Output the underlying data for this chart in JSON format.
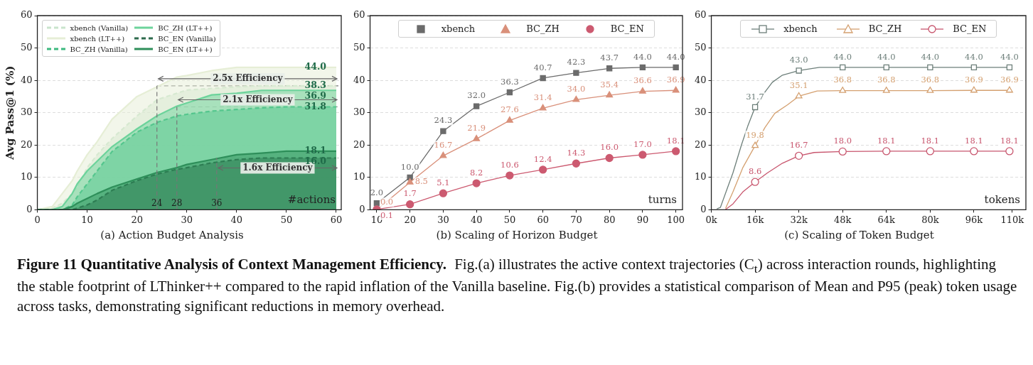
{
  "chart_data": [
    {
      "type": "area",
      "title": "(a) Action Budget Analysis",
      "xlabel": "#actions",
      "ylabel": "Avg Pass@1 (%)",
      "xlim": [
        0,
        61
      ],
      "xticks": [
        0,
        10,
        20,
        30,
        40,
        50,
        60
      ],
      "ylim": [
        0,
        60
      ],
      "yticks": [
        0,
        10,
        20,
        30,
        40,
        50,
        60
      ],
      "grid": "y",
      "legend": "top left",
      "x": [
        0,
        3,
        5,
        7,
        8,
        10,
        12,
        15,
        20,
        24,
        28,
        30,
        35,
        40,
        45,
        50,
        55,
        60
      ],
      "series": [
        {
          "name": "xbench (Vanilla)",
          "color": "#c9e4cc",
          "line_style": "dashed",
          "values": [
            0,
            0.5,
            2,
            5,
            7,
            13,
            17,
            22,
            29,
            34,
            36,
            37,
            37.5,
            38,
            38.3,
            38.3,
            38.3,
            38.3
          ],
          "value_labels": [
            null,
            null,
            null,
            null,
            null,
            null,
            null,
            null,
            null,
            null,
            null,
            null,
            null,
            null,
            null,
            null,
            null,
            "38.3"
          ]
        },
        {
          "name": "xbench (LT++)",
          "color": "#e6eed6",
          "line_style": "solid",
          "values": [
            0,
            1,
            5,
            9,
            12,
            17,
            21,
            28,
            35,
            38,
            41,
            41.5,
            43,
            44,
            44,
            44,
            44,
            44
          ],
          "value_labels": [
            null,
            null,
            null,
            null,
            null,
            null,
            null,
            null,
            null,
            null,
            null,
            null,
            null,
            null,
            null,
            null,
            null,
            "44.0"
          ]
        },
        {
          "name": "BC_ZH (Vanilla)",
          "color": "#3cb97f",
          "line_style": "dashed",
          "values": [
            0,
            0,
            0,
            1.5,
            4,
            8,
            12,
            18,
            24,
            27,
            29,
            29.5,
            30.5,
            31,
            31.5,
            31.8,
            31.8,
            31.8
          ],
          "value_labels": [
            null,
            null,
            null,
            null,
            null,
            null,
            null,
            null,
            null,
            null,
            null,
            null,
            null,
            null,
            null,
            null,
            null,
            "31.8"
          ]
        },
        {
          "name": "BC_ZH (LT++)",
          "color": "#6cd39b",
          "line_style": "solid",
          "values": [
            0,
            0,
            1,
            5,
            8,
            12,
            15,
            19.5,
            25,
            29,
            32,
            33,
            35.5,
            36,
            36.9,
            36.9,
            36.9,
            36.9
          ],
          "value_labels": [
            null,
            null,
            null,
            null,
            null,
            null,
            null,
            null,
            null,
            null,
            null,
            null,
            null,
            null,
            null,
            null,
            null,
            "36.9"
          ]
        },
        {
          "name": "BC_EN (Vanilla)",
          "color": "#2d6a4c",
          "line_style": "dashed",
          "values": [
            0,
            0,
            0,
            0,
            0.5,
            1.5,
            3,
            6,
            9,
            11,
            12.5,
            13,
            14.5,
            15.5,
            16,
            16,
            16,
            16
          ],
          "value_labels": [
            null,
            null,
            null,
            null,
            null,
            null,
            null,
            null,
            null,
            null,
            null,
            null,
            null,
            null,
            null,
            null,
            null,
            "16.0"
          ]
        },
        {
          "name": "BC_EN (LT++)",
          "color": "#2e8f5a",
          "line_style": "solid",
          "values": [
            0,
            0,
            0,
            1,
            2,
            3.5,
            5,
            7,
            9.5,
            11.5,
            13,
            14,
            15.5,
            17,
            17.5,
            18.1,
            18.1,
            18.1
          ],
          "value_labels": [
            null,
            null,
            null,
            null,
            null,
            null,
            null,
            null,
            null,
            null,
            null,
            null,
            null,
            null,
            null,
            null,
            null,
            "18.1"
          ]
        }
      ],
      "ref_lines": [
        {
          "axis": "x",
          "value": 24,
          "label": "24",
          "color": "#777777",
          "line_style": "dashed"
        },
        {
          "axis": "x",
          "value": 28,
          "label": "28",
          "color": "#777777",
          "line_style": "dashed"
        },
        {
          "axis": "x",
          "value": 36,
          "label": "36",
          "color": "#777777",
          "line_style": "dashed"
        },
        {
          "axis": "y",
          "value": 38.3,
          "color": "#777777",
          "line_style": "dashed"
        },
        {
          "axis": "y",
          "value": 31.8,
          "color": "#777777",
          "line_style": "dashed"
        },
        {
          "axis": "y",
          "value": 16,
          "color": "#777777",
          "line_style": "dashed"
        }
      ],
      "annotations": [
        "2.5x Efficiency",
        "2.1x Efficiency",
        "1.6x Efficiency"
      ]
    },
    {
      "type": "line",
      "title": "(b) Scaling of Horizon Budget",
      "xlabel": "turns",
      "xlim": [
        8,
        102
      ],
      "xticks": [
        10,
        20,
        30,
        40,
        50,
        60,
        70,
        80,
        90,
        100
      ],
      "ylim": [
        0,
        60
      ],
      "yticks": [
        0,
        10,
        20,
        30,
        40,
        50,
        60
      ],
      "grid": "y",
      "legend": "top",
      "x": [
        10,
        20,
        30,
        40,
        50,
        60,
        70,
        80,
        90,
        100
      ],
      "series": [
        {
          "name": "xbench",
          "color": "#6b6b6b",
          "marker": "square",
          "values": [
            2.0,
            10.0,
            24.3,
            32.0,
            36.3,
            40.7,
            42.3,
            43.7,
            44.0,
            44.0
          ],
          "value_labels": [
            "2.0",
            "10.0",
            "24.3",
            "32.0",
            "36.3",
            "40.7",
            "42.3",
            "43.7",
            "44.0",
            "44.0"
          ]
        },
        {
          "name": "BC_ZH",
          "color": "#d9907a",
          "marker": "triangle",
          "values": [
            0.0,
            8.5,
            16.7,
            21.9,
            27.6,
            31.4,
            34.0,
            35.4,
            36.6,
            36.9
          ],
          "value_labels": [
            "0.0",
            "8.5",
            "16.7",
            "21.9",
            "27.6",
            "31.4",
            "34.0",
            "35.4",
            "36.6",
            "36.9"
          ]
        },
        {
          "name": "BC_EN",
          "color": "#cc5a70",
          "marker": "circle",
          "values": [
            0.1,
            1.7,
            5.1,
            8.2,
            10.6,
            12.4,
            14.3,
            16.0,
            17.0,
            18.1
          ],
          "value_labels": [
            "0.1",
            "1.7",
            "5.1",
            "8.2",
            "10.6",
            "12.4",
            "14.3",
            "16.0",
            "17.0",
            "18.1"
          ]
        }
      ]
    },
    {
      "type": "line",
      "title": "(c) Scaling of Token Budget",
      "xlabel": "tokens",
      "annotations": [
        "Figure 11  Quantitative Analysis of Context Management Efficiency.",
        "Fig.(a) illustrates the active context trajectories (C$_{t}$) across interaction rounds, highlighting the stable footprint of LThinker++ compared to the rapid inflation of the Vanilla baseline. Fig.(b) provides a statistical comparison of Mean and P95 (peak) token usage across tasks, demonstrating significant reductions in memory overhead."
      ],
      "xlim": [
        0,
        115
      ],
      "xticks": [
        {
          "value": 0,
          "label": "0k"
        },
        {
          "value": 16,
          "label": "16k"
        },
        {
          "value": 32,
          "label": "32k"
        },
        {
          "value": 48,
          "label": "48k"
        },
        {
          "value": 64,
          "label": "64k"
        },
        {
          "value": 80,
          "label": "80k"
        },
        {
          "value": 96,
          "label": "96k"
        },
        {
          "value": 110,
          "label": "110k"
        }
      ],
      "ylim": [
        0,
        60
      ],
      "yticks": [
        0,
        10,
        20,
        30,
        40,
        50,
        60
      ],
      "grid": "y",
      "legend": "top",
      "series": [
        {
          "color": "#6d7f7a",
          "x": [
            2,
            3.3,
            6,
            7.9,
            11,
            13.3,
            16,
            19.6,
            22.3,
            26,
            32,
            39.5,
            48,
            64,
            80,
            96,
            109
          ],
          "values": [
            0.3,
            0.7,
            7,
            11.4,
            20,
            25.8,
            31.7,
            36.4,
            39.4,
            41.6,
            43,
            44,
            44,
            44,
            44,
            44,
            44
          ]
        },
        {
          "color": "#d4a070",
          "x": [
            5.2,
            7.9,
            11.5,
            16,
            19.6,
            23.2,
            27.8,
            32,
            38.7,
            48,
            64,
            80,
            96,
            109
          ],
          "values": [
            0.4,
            5.5,
            13,
            19.8,
            25.4,
            29.8,
            32.4,
            35.1,
            36.7,
            36.8,
            36.8,
            36.8,
            36.9,
            36.9
          ]
        },
        {
          "color": "#c8566e",
          "x": [
            5.2,
            7.9,
            11.5,
            16,
            20.5,
            26,
            32,
            37.6,
            48,
            64,
            80,
            96,
            109
          ],
          "values": [
            0.1,
            1.8,
            5.5,
            8.6,
            11.4,
            14.4,
            16.7,
            17.7,
            18,
            18.1,
            18.1,
            18.1,
            18.1
          ]
        },
        {
          "name": "xbench",
          "type": "scatter",
          "color": "#6d7f7a",
          "marker": "square",
          "x": [
            16,
            32,
            48,
            64,
            80,
            96,
            109
          ],
          "values": [
            31.7,
            43.0,
            44.0,
            44.0,
            44.0,
            44.0,
            44.0
          ],
          "value_labels": [
            "31.7",
            "43.0",
            "44.0",
            "44.0",
            "44.0",
            "44.0",
            "44.0"
          ]
        },
        {
          "name": "BC_ZH",
          "type": "scatter",
          "color": "#d4a070",
          "marker": "triangle",
          "x": [
            16,
            32,
            48,
            64,
            80,
            96,
            109
          ],
          "values": [
            19.8,
            35.1,
            36.8,
            36.8,
            36.8,
            36.9,
            36.9
          ],
          "value_labels": [
            "19.8",
            "35.1",
            "36.8",
            "36.8",
            "36.8",
            "36.9",
            "36.9"
          ]
        },
        {
          "name": "BC_EN",
          "type": "scatter",
          "color": "#c8566e",
          "marker": "circle",
          "x": [
            16,
            32,
            48,
            64,
            80,
            96,
            109
          ],
          "values": [
            8.6,
            16.7,
            18.0,
            18.1,
            18.1,
            18.1,
            18.1
          ],
          "value_labels": [
            "8.6",
            "16.7",
            "18.0",
            "18.1",
            "18.1",
            "18.1",
            "18.1"
          ]
        }
      ]
    }
  ]
}
